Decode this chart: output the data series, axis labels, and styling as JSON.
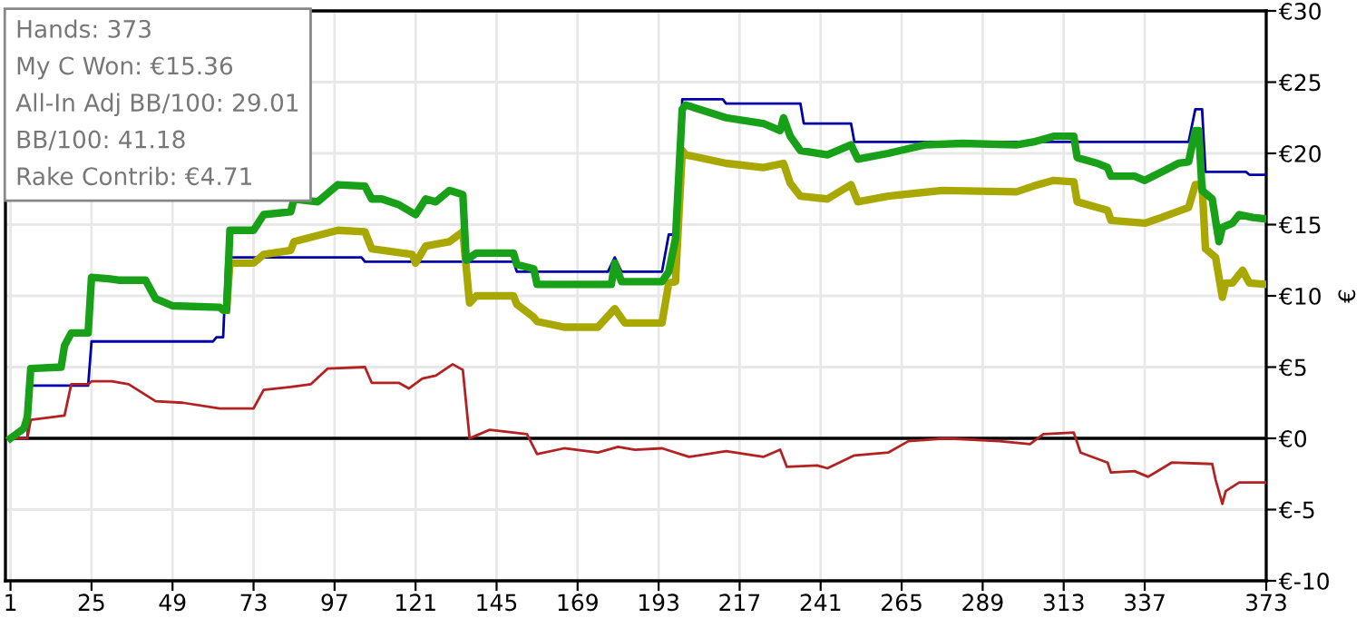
{
  "chart_data": {
    "type": "line",
    "ylabel": "€",
    "annotations": [
      "Hands: 373",
      "My C Won: €15.36",
      "All-In Adj BB/100: 29.01",
      "BB/100: 41.18",
      "Rake Contrib: €4.71"
    ],
    "series": [
      {
        "color": "#18a018",
        "x": [
          1,
          5,
          6,
          7,
          16,
          17,
          19,
          24,
          25,
          30,
          33,
          41,
          44,
          49,
          63,
          64,
          65,
          66,
          73,
          76,
          84,
          85,
          92,
          98,
          106,
          108,
          111,
          116,
          121,
          124,
          127,
          131,
          135,
          136,
          139,
          150,
          151,
          156,
          157,
          179,
          180,
          182,
          194,
          196,
          198,
          200,
          201,
          213,
          224,
          229,
          230,
          232,
          235,
          243,
          250,
          252,
          261,
          272,
          283,
          299,
          304,
          310,
          316,
          317,
          323,
          326,
          327,
          334,
          337,
          342,
          347,
          350,
          352,
          353,
          354,
          357,
          359,
          360,
          363,
          365,
          369,
          373
        ],
        "values": [
          0,
          0.7,
          1.5,
          4.9,
          5.0,
          6.5,
          7.4,
          7.4,
          11.3,
          11.2,
          11.1,
          11.1,
          9.8,
          9.3,
          9.2,
          9.0,
          9.0,
          14.6,
          14.6,
          15.7,
          15.9,
          16.8,
          16.6,
          17.8,
          17.7,
          16.8,
          16.8,
          16.4,
          15.7,
          16.8,
          16.6,
          17.4,
          17.1,
          12.5,
          13.0,
          13.0,
          12.2,
          11.9,
          10.8,
          10.8,
          12.3,
          11.0,
          11.0,
          11.7,
          14.0,
          23.1,
          23.4,
          22.5,
          22.1,
          21.6,
          22.5,
          21.2,
          20.2,
          19.9,
          20.6,
          19.6,
          20.0,
          20.6,
          20.7,
          20.6,
          20.8,
          21.2,
          21.2,
          19.7,
          19.3,
          19.0,
          18.4,
          18.4,
          18.1,
          18.7,
          19.3,
          19.4,
          21.6,
          21.6,
          17.4,
          16.8,
          13.8,
          14.8,
          15.1,
          15.7,
          15.5,
          15.4
        ]
      },
      {
        "color": "#a8a800",
        "x": [
          65,
          66,
          73,
          76,
          84,
          85,
          98,
          106,
          108,
          120,
          121,
          124,
          131,
          135,
          137,
          139,
          150,
          151,
          156,
          157,
          165,
          175,
          180,
          183,
          194,
          196,
          198,
          200,
          201,
          213,
          224,
          230,
          232,
          235,
          243,
          250,
          252,
          261,
          277,
          299,
          304,
          310,
          316,
          317,
          326,
          327,
          337,
          342,
          350,
          352,
          354,
          355,
          358,
          360,
          361,
          363,
          366,
          368,
          373
        ],
        "values": [
          9.0,
          12.3,
          12.3,
          12.9,
          13.2,
          13.8,
          14.6,
          14.5,
          13.3,
          12.9,
          12.3,
          13.5,
          13.8,
          14.5,
          9.5,
          10.0,
          10.0,
          9.4,
          8.5,
          8.2,
          7.8,
          7.8,
          9.1,
          8.1,
          8.1,
          10.9,
          11.0,
          20.2,
          19.9,
          19.3,
          19.0,
          19.3,
          17.9,
          17.0,
          16.8,
          17.8,
          16.6,
          17.0,
          17.4,
          17.3,
          17.7,
          18.1,
          18.0,
          16.6,
          16.0,
          15.3,
          15.1,
          15.5,
          16.2,
          17.8,
          17.8,
          13.3,
          12.7,
          9.9,
          10.9,
          10.9,
          11.8,
          10.9,
          10.8
        ]
      },
      {
        "color": "#0000aa",
        "x": [
          1,
          6,
          7,
          24,
          25,
          61,
          62,
          64,
          65,
          105,
          106,
          150,
          151,
          178,
          180,
          182,
          194,
          196,
          199,
          200,
          212,
          213,
          235,
          236,
          250,
          251,
          350,
          352,
          354,
          355,
          367,
          368,
          373
        ],
        "values": [
          0,
          0,
          3.7,
          3.7,
          6.8,
          6.8,
          7.1,
          7.1,
          12.7,
          12.7,
          12.4,
          12.4,
          11.7,
          11.7,
          12.7,
          11.7,
          11.7,
          14.3,
          14.3,
          23.8,
          23.8,
          23.5,
          23.5,
          22.1,
          22.1,
          20.8,
          20.8,
          23.1,
          23.1,
          18.7,
          18.7,
          18.5,
          18.5
        ]
      },
      {
        "color": "#b22222",
        "x": [
          1,
          6,
          7,
          17,
          19,
          24,
          25,
          31,
          36,
          44,
          52,
          63,
          73,
          76,
          84,
          90,
          95,
          106,
          108,
          116,
          119,
          123,
          127,
          132,
          135,
          137,
          139,
          143,
          154,
          157,
          165,
          175,
          181,
          186,
          194,
          202,
          213,
          224,
          229,
          231,
          240,
          243,
          251,
          261,
          267,
          278,
          294,
          303,
          307,
          316,
          318,
          326,
          327,
          334,
          338,
          345,
          357,
          358,
          360,
          361,
          365,
          373
        ],
        "values": [
          0,
          0,
          1.3,
          1.6,
          3.8,
          3.8,
          4.0,
          4.0,
          3.8,
          2.6,
          2.5,
          2.1,
          2.1,
          3.4,
          3.6,
          3.8,
          4.9,
          5.0,
          3.9,
          3.9,
          3.5,
          4.2,
          4.4,
          5.2,
          4.8,
          0,
          0.2,
          0.6,
          0.3,
          -1.1,
          -0.7,
          -1.0,
          -0.6,
          -0.8,
          -0.7,
          -1.3,
          -0.9,
          -1.3,
          -0.8,
          -2.0,
          -1.9,
          -2.1,
          -1.2,
          -1.0,
          -0.2,
          0,
          -0.2,
          -0.4,
          0.3,
          0.4,
          -1.0,
          -1.7,
          -2.4,
          -2.3,
          -2.7,
          -1.7,
          -1.8,
          -2.9,
          -4.6,
          -3.7,
          -3.1,
          -3.1
        ]
      }
    ],
    "xlim": [
      -0.5,
      373
    ],
    "xticks": [
      1,
      25,
      49,
      73,
      97,
      121,
      145,
      169,
      193,
      217,
      241,
      265,
      289,
      313,
      337,
      373
    ],
    "ylim": [
      -10,
      30
    ],
    "yticks": [
      {
        "value": -10,
        "label": "€-10"
      },
      {
        "value": -5,
        "label": "€-5"
      },
      {
        "value": 0,
        "label": "€0"
      },
      {
        "value": 5,
        "label": "€5"
      },
      {
        "value": 10,
        "label": "€10"
      },
      {
        "value": 15,
        "label": "€15"
      },
      {
        "value": 20,
        "label": "€20"
      },
      {
        "value": 25,
        "label": "€25"
      },
      {
        "value": 30,
        "label": "€30"
      }
    ],
    "ref_lines": [
      {
        "axis": "y",
        "value": 0,
        "color": "#000000"
      }
    ],
    "grid": true,
    "marker": "none",
    "line_style": "solid"
  }
}
